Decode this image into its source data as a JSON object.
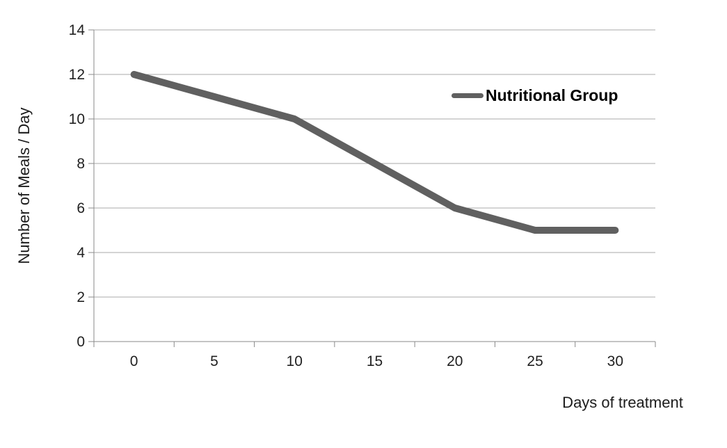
{
  "chart_data": {
    "type": "line",
    "title": "",
    "xlabel": "Days of treatment",
    "ylabel": "Number of Meals / Day",
    "categories": [
      "0",
      "5",
      "10",
      "15",
      "20",
      "25",
      "30"
    ],
    "series": [
      {
        "name": "Nutritional Group",
        "values": [
          12,
          11,
          10,
          8,
          6,
          5,
          5
        ],
        "color": "#606060"
      }
    ],
    "ylim": [
      0,
      14
    ],
    "ytick_step": 2,
    "yticks": [
      "0",
      "2",
      "4",
      "6",
      "8",
      "10",
      "12",
      "14"
    ],
    "grid": true,
    "legend_position": "inside-top-right"
  },
  "colors": {
    "series_line": "#606060",
    "gridline": "#a8a8a8",
    "axis_line": "#8a8a8a",
    "tick_label": "#212121",
    "background": "#ffffff"
  }
}
